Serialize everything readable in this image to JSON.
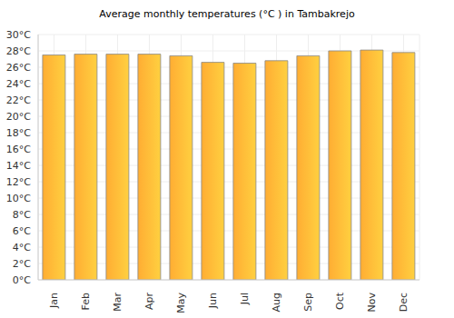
{
  "chart_data": {
    "type": "bar",
    "title": "Average monthly temperatures (°C ) in Tambakrejo",
    "categories": [
      "Jan",
      "Feb",
      "Mar",
      "Apr",
      "May",
      "Jun",
      "Jul",
      "Aug",
      "Sep",
      "Oct",
      "Nov",
      "Dec"
    ],
    "values": [
      27.5,
      27.6,
      27.6,
      27.6,
      27.4,
      26.6,
      26.5,
      26.8,
      27.4,
      28.0,
      28.1,
      27.8
    ],
    "color": "#ffad33",
    "ylim": [
      0,
      30
    ],
    "yticks": [
      {
        "value": 0,
        "label": "0°C"
      },
      {
        "value": 2,
        "label": "2°C"
      },
      {
        "value": 4,
        "label": "4°C"
      },
      {
        "value": 6,
        "label": "6°C"
      },
      {
        "value": 8,
        "label": "8°C"
      },
      {
        "value": 10,
        "label": "10°C"
      },
      {
        "value": 12,
        "label": "12°C"
      },
      {
        "value": 14,
        "label": "14°C"
      },
      {
        "value": 16,
        "label": "16°C"
      },
      {
        "value": 18,
        "label": "18°C"
      },
      {
        "value": 20,
        "label": "20°C"
      },
      {
        "value": 22,
        "label": "22°C"
      },
      {
        "value": 24,
        "label": "24°C"
      },
      {
        "value": 26,
        "label": "26°C"
      },
      {
        "value": 28,
        "label": "28°C"
      },
      {
        "value": 30,
        "label": "30°C"
      }
    ],
    "grid": true
  }
}
